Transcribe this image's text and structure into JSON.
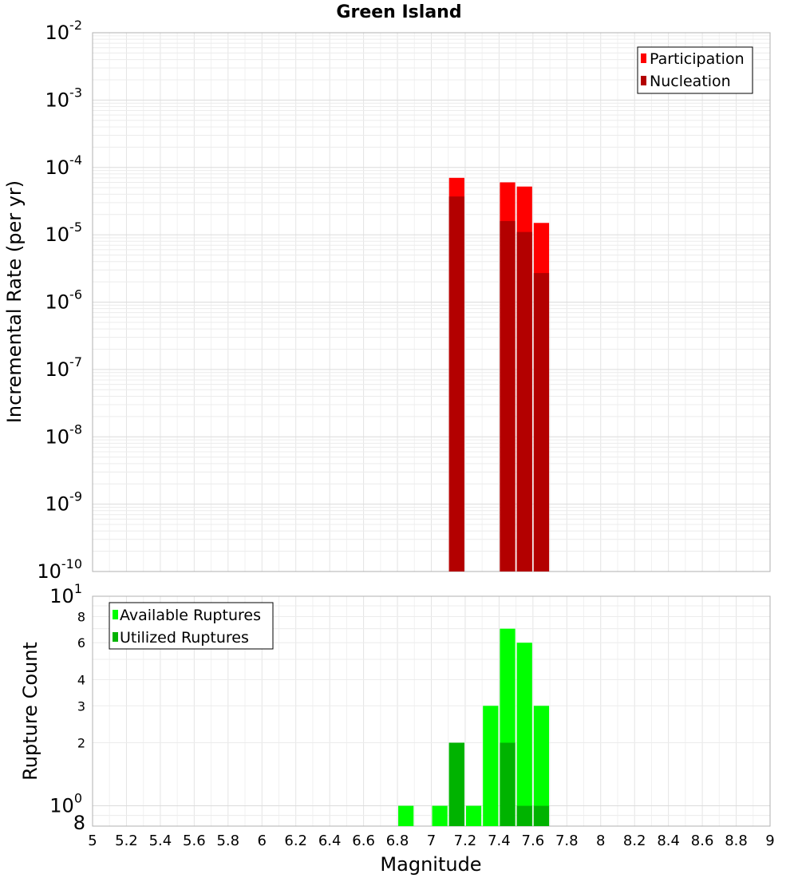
{
  "chart_data": [
    {
      "type": "bar",
      "title": "Green Island",
      "xlabel": "",
      "ylabel": "Incremental Rate (per yr)",
      "xlim": [
        5,
        9
      ],
      "ylim": [
        1e-10,
        0.01
      ],
      "yscale": "log",
      "bin_width": 0.1,
      "grid": true,
      "legend_position": "top-right",
      "series": [
        {
          "name": "Participation",
          "color": "#ff0000",
          "x": [
            7.15,
            7.45,
            7.55,
            7.65
          ],
          "values": [
            7e-05,
            6e-05,
            5.2e-05,
            1.5e-05
          ]
        },
        {
          "name": "Nucleation",
          "color": "#b30000",
          "x": [
            7.15,
            7.45,
            7.55,
            7.65
          ],
          "values": [
            3.7e-05,
            1.6e-05,
            1.1e-05,
            2.7e-06
          ]
        }
      ],
      "y_major_ticks": [
        {
          "base": "10",
          "exp": "-2"
        },
        {
          "base": "10",
          "exp": "-3"
        },
        {
          "base": "10",
          "exp": "-4"
        },
        {
          "base": "10",
          "exp": "-5"
        },
        {
          "base": "10",
          "exp": "-6"
        },
        {
          "base": "10",
          "exp": "-7"
        },
        {
          "base": "10",
          "exp": "-8"
        },
        {
          "base": "10",
          "exp": "-9"
        },
        {
          "base": "10",
          "exp": "-10"
        }
      ]
    },
    {
      "type": "bar",
      "title": "",
      "xlabel": "Magnitude",
      "ylabel": "Rupture Count",
      "xlim": [
        5,
        9
      ],
      "ylim": [
        0.8,
        10
      ],
      "yscale": "log",
      "bin_width": 0.1,
      "grid": true,
      "legend_position": "top-left",
      "series": [
        {
          "name": "Available Ruptures",
          "color": "#00ff00",
          "x": [
            6.85,
            7.05,
            7.15,
            7.25,
            7.35,
            7.45,
            7.55,
            7.65
          ],
          "values": [
            1,
            1,
            2,
            1,
            3,
            7,
            6,
            3
          ]
        },
        {
          "name": "Utilized Ruptures",
          "color": "#00b300",
          "x": [
            7.15,
            7.45,
            7.55,
            7.65
          ],
          "values": [
            2,
            2,
            1,
            1
          ]
        }
      ],
      "y_major_ticks": [
        {
          "base": "10",
          "exp": "1"
        },
        {
          "base": "10",
          "exp": "0"
        }
      ],
      "y_minor_tick_labels": [
        "8",
        "6",
        "4",
        "3",
        "2",
        "8"
      ],
      "x_tick_labels": [
        "5",
        "5.2",
        "5.4",
        "5.6",
        "5.8",
        "6",
        "6.2",
        "6.4",
        "6.6",
        "6.8",
        "7",
        "7.2",
        "7.4",
        "7.6",
        "7.8",
        "8",
        "8.2",
        "8.4",
        "8.6",
        "8.8",
        "9"
      ]
    }
  ]
}
